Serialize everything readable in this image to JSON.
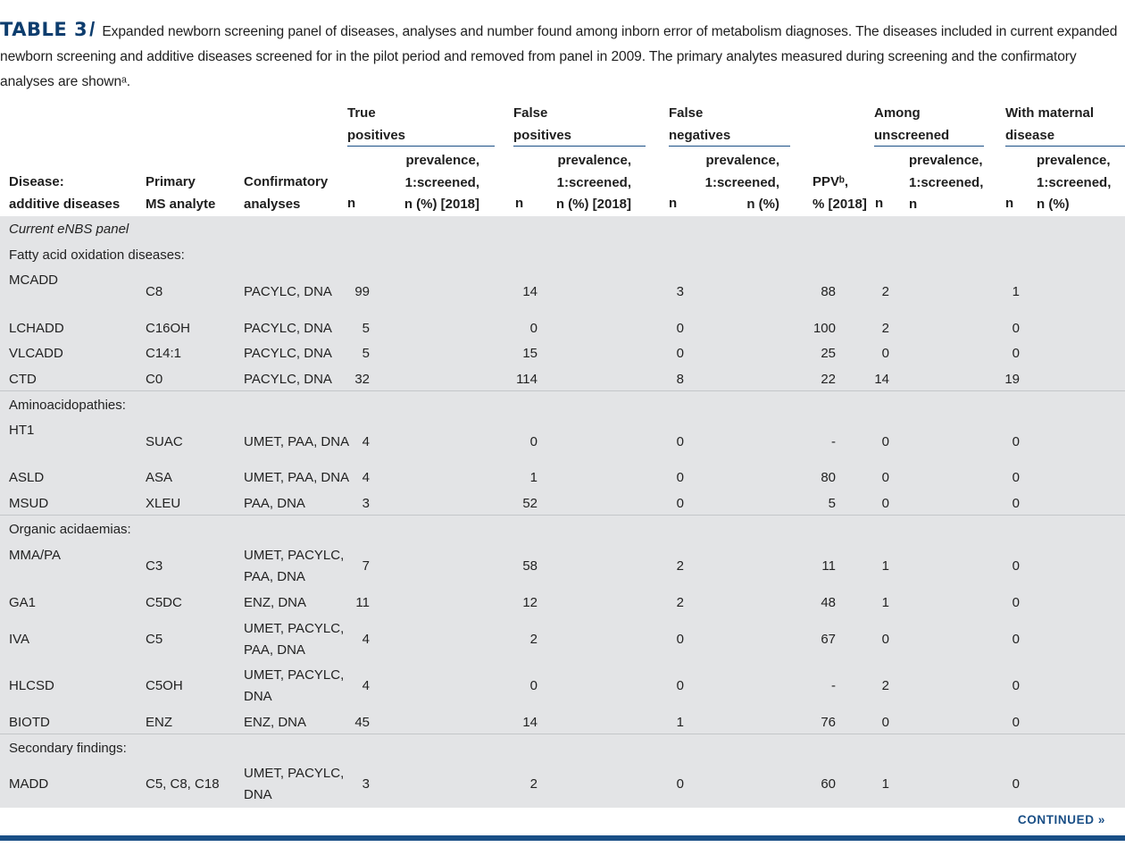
{
  "caption": {
    "label": "TABLE 3",
    "slash": "/",
    "text": "Expanded newborn screening panel of diseases, analyses and number found among inborn error of metabolism diagnoses. The diseases included in current expanded newborn screening and additive diseases screened for in the pilot period and removed from panel in 2009. The primary analytes measured during screening and the confirmatory analyses are shownᵃ."
  },
  "headers": {
    "disease": [
      "Disease:",
      "additive diseases"
    ],
    "analyte": [
      "Primary",
      "MS analyte"
    ],
    "confirm": [
      "Confirmatory",
      "analyses"
    ],
    "groups": {
      "tp": [
        "True",
        "positives"
      ],
      "fp": [
        "False",
        "positives"
      ],
      "fn": [
        "False",
        "negatives"
      ],
      "un": [
        "Among",
        "unscreened"
      ],
      "md": [
        "With maternal",
        "disease"
      ]
    },
    "n": "n",
    "prev2018": [
      "prevalence,",
      "1:screened,",
      "n (%) [2018]"
    ],
    "prevFN": [
      "prevalence,",
      "1:screened,",
      "n (%)"
    ],
    "prevUN": [
      "prevalence,",
      "1:screened,",
      "n"
    ],
    "prevMD": [
      "prevalence,",
      "1:screened,",
      "n (%)"
    ],
    "ppv": [
      "PPVᵇ,",
      "% [2018]"
    ]
  },
  "sections": {
    "panel": "Current eNBS panel",
    "fao": "Fatty acid oxidation diseases:",
    "aa": "Aminoacidopathies:",
    "oa": "Organic acidaemias:",
    "sf": "Secondary findings:"
  },
  "rows": [
    {
      "disease": "MCADD",
      "analyte": "C8",
      "confirm": [
        "PACYLC, DNA"
      ],
      "tp": "99",
      "fp": "14",
      "fn": "3",
      "ppv": "88",
      "un": "2",
      "md": "1"
    },
    {
      "disease": "LCHADD",
      "analyte": "C16OH",
      "confirm": [
        "PACYLC, DNA"
      ],
      "tp": "5",
      "fp": "0",
      "fn": "0",
      "ppv": "100",
      "un": "2",
      "md": "0"
    },
    {
      "disease": "VLCADD",
      "analyte": "C14:1",
      "confirm": [
        "PACYLC, DNA"
      ],
      "tp": "5",
      "fp": "15",
      "fn": "0",
      "ppv": "25",
      "un": "0",
      "md": "0"
    },
    {
      "disease": "CTD",
      "analyte": "C0",
      "confirm": [
        "PACYLC, DNA"
      ],
      "tp": "32",
      "fp": "114",
      "fn": "8",
      "ppv": "22",
      "un": "14",
      "md": "19"
    },
    {
      "disease": "HT1",
      "analyte": "SUAC",
      "confirm": [
        "UMET, PAA, DNA"
      ],
      "tp": "4",
      "fp": "0",
      "fn": "0",
      "ppv": "-",
      "un": "0",
      "md": "0"
    },
    {
      "disease": "ASLD",
      "analyte": "ASA",
      "confirm": [
        "UMET, PAA, DNA"
      ],
      "tp": "4",
      "fp": "1",
      "fn": "0",
      "ppv": "80",
      "un": "0",
      "md": "0"
    },
    {
      "disease": "MSUD",
      "analyte": "XLEU",
      "confirm": [
        "PAA, DNA"
      ],
      "tp": "3",
      "fp": "52",
      "fn": "0",
      "ppv": "5",
      "un": "0",
      "md": "0"
    },
    {
      "disease": "MMA/PA",
      "analyte": "C3",
      "confirm": [
        "UMET, PACYLC,",
        "PAA, DNA"
      ],
      "tp": "7",
      "fp": "58",
      "fn": "2",
      "ppv": "11",
      "un": "1",
      "md": "0"
    },
    {
      "disease": "GA1",
      "analyte": "C5DC",
      "confirm": [
        "ENZ, DNA"
      ],
      "tp": "11",
      "fp": "12",
      "fn": "2",
      "ppv": "48",
      "un": "1",
      "md": "0"
    },
    {
      "disease": "IVA",
      "analyte": "C5",
      "confirm": [
        "UMET, PACYLC,",
        "PAA, DNA"
      ],
      "tp": "4",
      "fp": "2",
      "fn": "0",
      "ppv": "67",
      "un": "0",
      "md": "0"
    },
    {
      "disease": "HLCSD",
      "analyte": "C5OH",
      "confirm": [
        "UMET, PACYLC,",
        "DNA"
      ],
      "tp": "4",
      "fp": "0",
      "fn": "0",
      "ppv": "-",
      "un": "2",
      "md": "0"
    },
    {
      "disease": "BIOTD",
      "analyte": "ENZ",
      "confirm": [
        "ENZ, DNA"
      ],
      "tp": "45",
      "fp": "14",
      "fn": "1",
      "ppv": "76",
      "un": "0",
      "md": "0"
    },
    {
      "disease": "MADD",
      "analyte": "C5, C8, C18",
      "confirm": [
        "UMET, PACYLC,",
        "DNA"
      ],
      "tp": "3",
      "fp": "2",
      "fn": "0",
      "ppv": "60",
      "un": "1",
      "md": "0"
    }
  ],
  "footer": {
    "continued": "CONTINUED »"
  }
}
